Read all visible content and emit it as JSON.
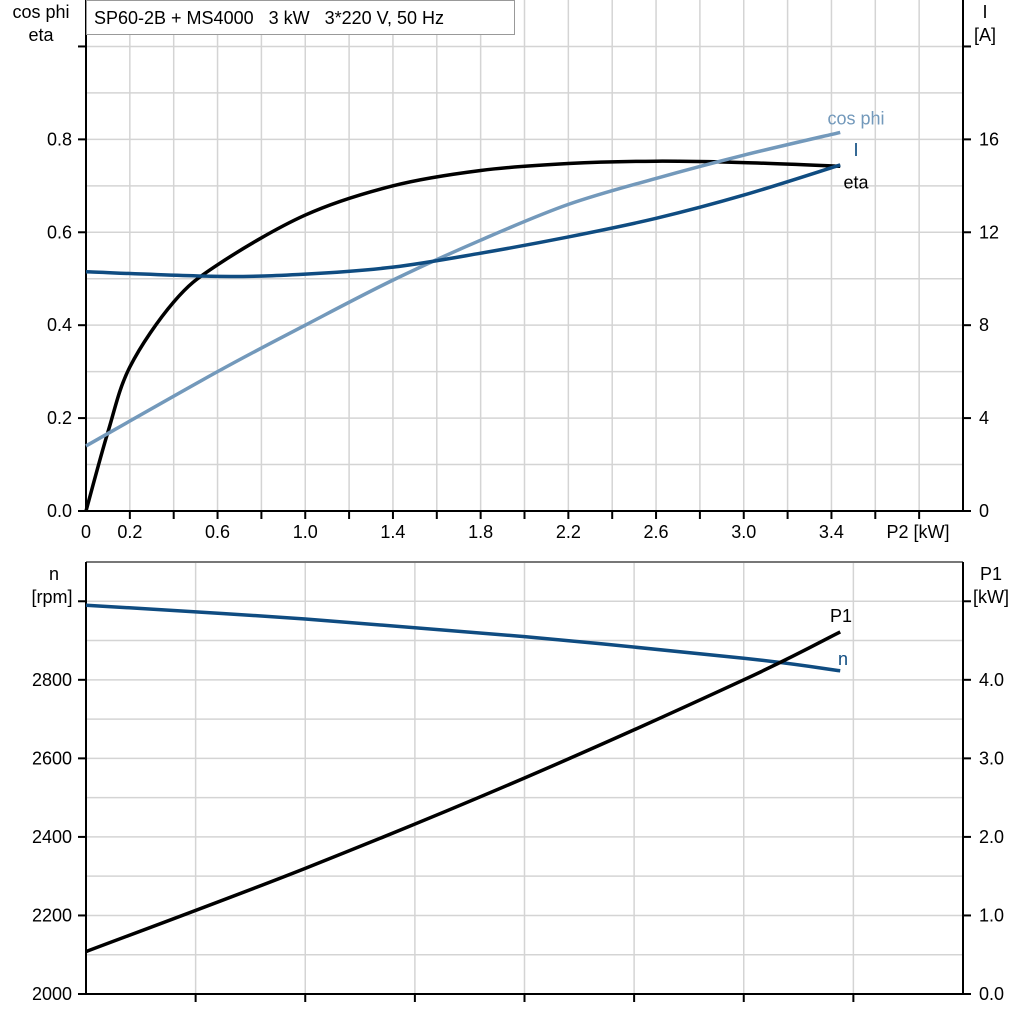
{
  "chart_data": [
    {
      "type": "line",
      "title": "SP60-2B + MS4000   3 kW   3*220 V, 50 Hz",
      "xlabel": "P2 [kW]",
      "xlim": [
        0,
        4.0
      ],
      "x_ticks": [
        "0",
        "0.2",
        "0.6",
        "1.0",
        "1.4",
        "1.8",
        "2.2",
        "2.6",
        "3.0",
        "3.4"
      ],
      "ylabel_left": [
        "cos phi",
        "eta"
      ],
      "ylim_left": [
        0,
        1.1
      ],
      "y_ticks_left": [
        "0.0",
        "0.2",
        "0.4",
        "0.6",
        "0.8"
      ],
      "ylabel_right": [
        "I",
        "[A]"
      ],
      "ylim_right": [
        0,
        22
      ],
      "y_ticks_right": [
        "0",
        "4",
        "8",
        "12",
        "16"
      ],
      "grid": true,
      "series": [
        {
          "name": "eta",
          "axis": "left",
          "color": "#000000",
          "x": [
            0,
            0.1,
            0.2,
            0.4,
            0.6,
            1.0,
            1.4,
            1.8,
            2.2,
            2.6,
            3.0,
            3.44
          ],
          "values": [
            0,
            0.17,
            0.31,
            0.45,
            0.53,
            0.637,
            0.7,
            0.733,
            0.748,
            0.753,
            0.75,
            0.742
          ]
        },
        {
          "name": "cos phi",
          "axis": "left",
          "color": "#7399bb",
          "x": [
            0,
            0.6,
            1.0,
            1.4,
            1.8,
            2.2,
            2.6,
            3.0,
            3.44
          ],
          "values": [
            0.14,
            0.3,
            0.4,
            0.497,
            0.583,
            0.66,
            0.716,
            0.766,
            0.815
          ]
        },
        {
          "name": "I",
          "axis": "right",
          "color": "#0f4c81",
          "x": [
            0,
            0.6,
            1.0,
            1.4,
            1.8,
            2.2,
            2.6,
            3.0,
            3.44
          ],
          "values": [
            10.3,
            10.1,
            10.2,
            10.5,
            11.1,
            11.8,
            12.6,
            13.6,
            14.9
          ]
        }
      ]
    },
    {
      "type": "line",
      "xlim": [
        0,
        4.0
      ],
      "ylabel_left": [
        "n",
        "[rpm]"
      ],
      "ylim_left": [
        2000,
        3100
      ],
      "y_ticks_left": [
        "2000",
        "2200",
        "2400",
        "2600",
        "2800"
      ],
      "ylabel_right": [
        "P1",
        "[kW]"
      ],
      "ylim_right": [
        0,
        5.5
      ],
      "y_ticks_right": [
        "0.0",
        "1.0",
        "2.0",
        "3.0",
        "4.0"
      ],
      "grid": true,
      "series": [
        {
          "name": "n",
          "axis": "left",
          "color": "#0f4c81",
          "x": [
            0,
            1.0,
            2.0,
            3.0,
            3.44
          ],
          "values": [
            2990,
            2955,
            2910,
            2855,
            2823
          ]
        },
        {
          "name": "P1",
          "axis": "right",
          "color": "#000000",
          "x": [
            0,
            1.0,
            2.0,
            3.0,
            3.44
          ],
          "values": [
            0.54,
            1.6,
            2.75,
            4.0,
            4.61
          ]
        }
      ]
    }
  ]
}
